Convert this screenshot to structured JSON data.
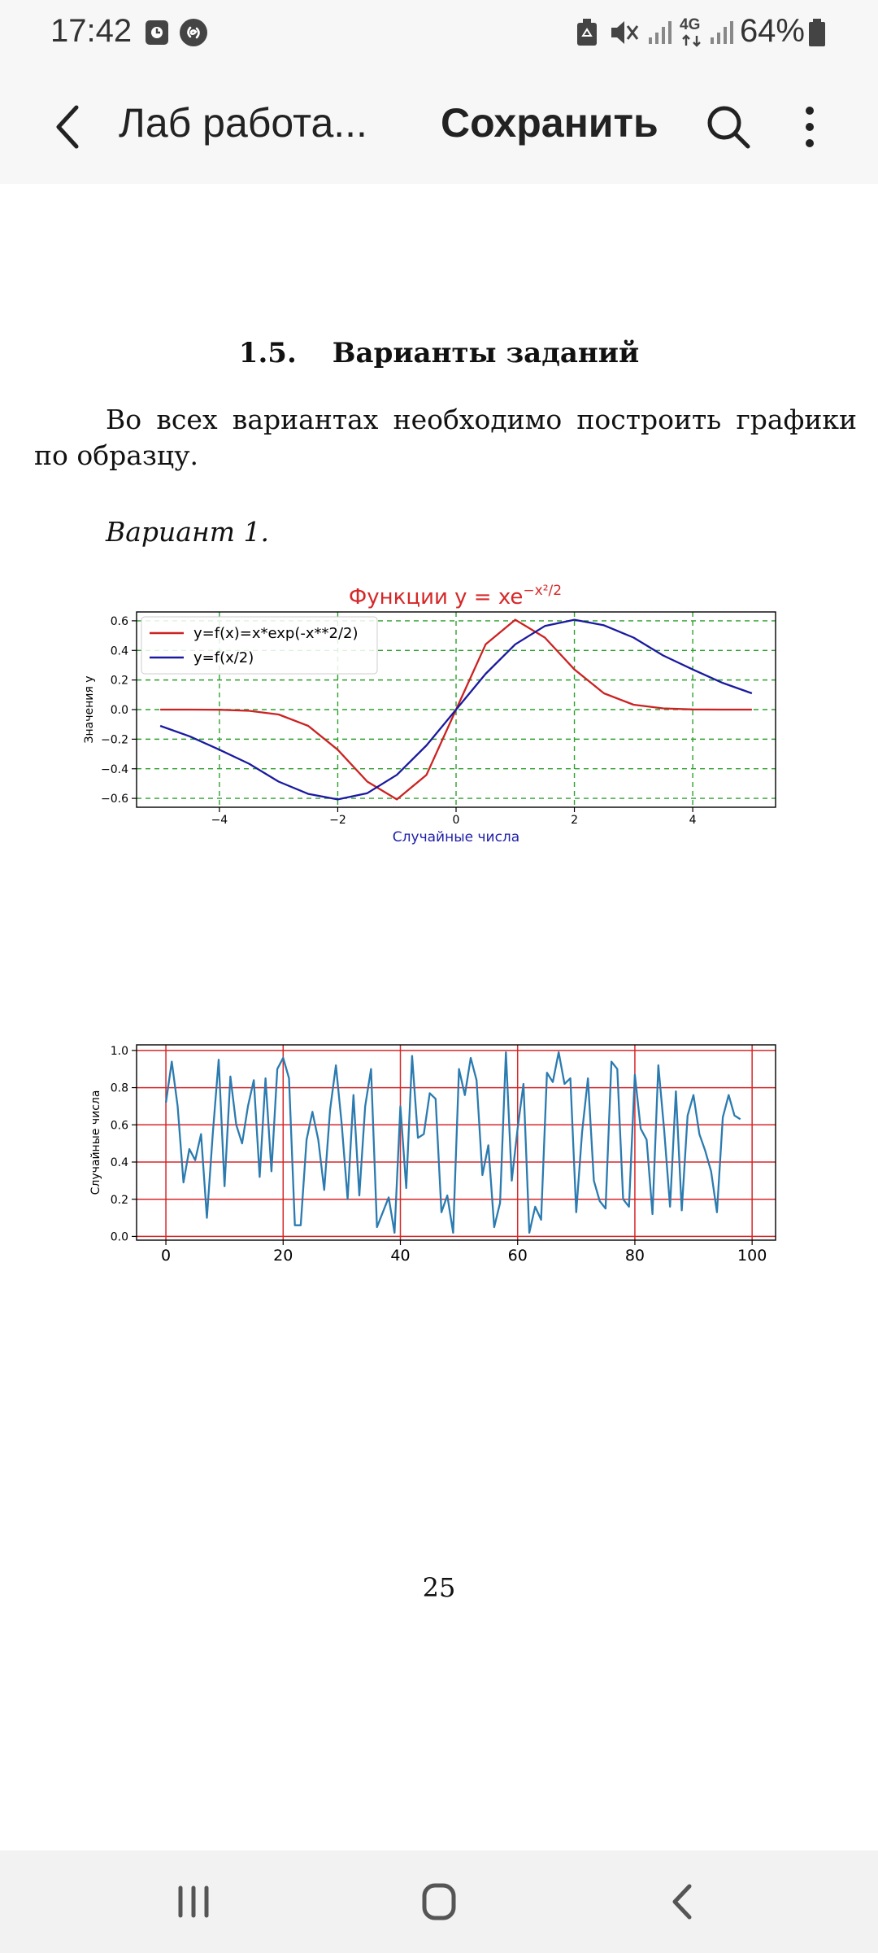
{
  "status_bar": {
    "time": "17:42",
    "battery": "64%",
    "network": "4G",
    "icons": [
      "clock-app-icon",
      "shazam-icon",
      "recycle-notification-icon",
      "mute-vibrate-icon",
      "signal-icon",
      "network-4g-icon",
      "signal-icon",
      "battery-icon"
    ]
  },
  "app_bar": {
    "back_icon": "chevron-left-icon",
    "title": "Лаб работа...",
    "save_label": "Сохранить",
    "search_icon": "search-icon",
    "more_icon": "more-vertical-icon"
  },
  "document": {
    "section_number": "1.5.",
    "section_title": "Варианты заданий",
    "paragraph": "Во всех вариантах необходимо построить графики по образцу.",
    "variant_label": "Вариант 1.",
    "page_number": "25"
  },
  "chart_data": [
    {
      "type": "line",
      "title": "Функции y = xe^(−x²/2)",
      "title_color": "#d62728",
      "xlabel": "Случайные числа",
      "xlabel_color": "#1f1fa8",
      "ylabel": "Значения y",
      "xlim": [
        -5.4,
        5.4
      ],
      "ylim": [
        -0.66,
        0.66
      ],
      "xticks": [
        -4,
        -2,
        0,
        2,
        4
      ],
      "xtick_labels": [
        "−4",
        "−2",
        "0",
        "2",
        "4"
      ],
      "yticks": [
        0.6,
        0.4,
        0.2,
        0.0,
        -0.2,
        -0.4,
        -0.6
      ],
      "ytick_labels": [
        "0.6",
        "0.4",
        "0.2",
        "0.0",
        "−0.2",
        "−0.4",
        "−0.6"
      ],
      "grid": "dashed green",
      "legend_position": "upper-left",
      "x": [
        -5,
        -4.5,
        -4,
        -3.5,
        -3,
        -2.5,
        -2,
        -1.5,
        -1,
        -0.5,
        0,
        0.5,
        1,
        1.5,
        2,
        2.5,
        3,
        3.5,
        4,
        4.5,
        5
      ],
      "series": [
        {
          "name": "y=f(x)=x*exp(-x**2/2)",
          "color": "#cc2222",
          "values": [
            -0.0,
            -0.0,
            -0.001,
            -0.008,
            -0.033,
            -0.11,
            -0.271,
            -0.487,
            -0.607,
            -0.441,
            0.0,
            0.441,
            0.607,
            0.487,
            0.271,
            0.11,
            0.033,
            0.008,
            0.001,
            0.0,
            0.0
          ]
        },
        {
          "name": "y=f(x/2)",
          "color": "#1a1aa0",
          "values": [
            -0.11,
            -0.181,
            -0.271,
            -0.366,
            -0.487,
            -0.57,
            -0.607,
            -0.565,
            -0.441,
            -0.242,
            0.0,
            0.242,
            0.441,
            0.565,
            0.607,
            0.57,
            0.487,
            0.366,
            0.271,
            0.181,
            0.11
          ]
        }
      ]
    },
    {
      "type": "line",
      "ylabel": "Случайные числа",
      "xlim": [
        -5,
        104
      ],
      "ylim": [
        -0.02,
        1.03
      ],
      "xticks": [
        0,
        20,
        40,
        60,
        80,
        100
      ],
      "xtick_labels": [
        "0",
        "20",
        "40",
        "60",
        "80",
        "100"
      ],
      "yticks": [
        0.0,
        0.2,
        0.4,
        0.6,
        0.8,
        1.0
      ],
      "ytick_labels": [
        "0.0",
        "0.2",
        "0.4",
        "0.6",
        "0.8",
        "1.0"
      ],
      "grid": "solid red",
      "series": [
        {
          "color": "#2b7bb0",
          "values": [
            0.72,
            0.94,
            0.7,
            0.29,
            0.47,
            0.41,
            0.55,
            0.1,
            0.55,
            0.95,
            0.27,
            0.86,
            0.6,
            0.5,
            0.7,
            0.84,
            0.32,
            0.85,
            0.35,
            0.9,
            0.96,
            0.85,
            0.06,
            0.06,
            0.52,
            0.67,
            0.52,
            0.25,
            0.68,
            0.92,
            0.6,
            0.2,
            0.76,
            0.22,
            0.7,
            0.9,
            0.05,
            0.13,
            0.21,
            0.02,
            0.7,
            0.26,
            0.97,
            0.53,
            0.55,
            0.77,
            0.74,
            0.13,
            0.22,
            0.02,
            0.9,
            0.76,
            0.96,
            0.84,
            0.33,
            0.49,
            0.05,
            0.18,
            0.99,
            0.3,
            0.58,
            0.82,
            0.02,
            0.16,
            0.09,
            0.88,
            0.83,
            0.99,
            0.82,
            0.85,
            0.13,
            0.56,
            0.85,
            0.3,
            0.19,
            0.15,
            0.94,
            0.9,
            0.2,
            0.16,
            0.87,
            0.58,
            0.52,
            0.12,
            0.92,
            0.57,
            0.16,
            0.78,
            0.14,
            0.65,
            0.76,
            0.55,
            0.46,
            0.35,
            0.13,
            0.64,
            0.76,
            0.65,
            0.63
          ]
        }
      ]
    }
  ]
}
